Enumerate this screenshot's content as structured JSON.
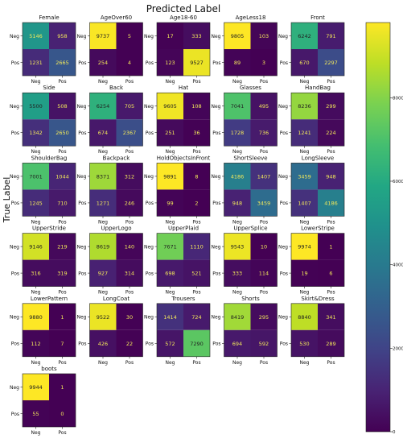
{
  "chart_data": {
    "type": "heatmap",
    "title": "Predicted Label",
    "ylabel": "True Label",
    "row_labels": [
      "Neg",
      "Pos"
    ],
    "col_labels": [
      "Neg",
      "Pos"
    ],
    "colormap": "viridis",
    "color_range": [
      0,
      9800
    ],
    "colorbar_ticks": [
      0,
      2000,
      4000,
      6000,
      8000
    ],
    "colorbar_tick_labels": [
      "0",
      "2000",
      "4000",
      "6000",
      "8000"
    ],
    "matrices": [
      {
        "name": "Female",
        "values": [
          [
            5146,
            958
          ],
          [
            1231,
            2665
          ]
        ]
      },
      {
        "name": "AgeOver60",
        "values": [
          [
            9737,
            5
          ],
          [
            254,
            4
          ]
        ]
      },
      {
        "name": "Age18-60",
        "values": [
          [
            17,
            333
          ],
          [
            123,
            9527
          ]
        ]
      },
      {
        "name": "AgeLess18",
        "values": [
          [
            9805,
            103
          ],
          [
            89,
            3
          ]
        ]
      },
      {
        "name": "Front",
        "values": [
          [
            6242,
            791
          ],
          [
            670,
            2297
          ]
        ]
      },
      {
        "name": "Side",
        "values": [
          [
            5500,
            508
          ],
          [
            1342,
            2650
          ]
        ]
      },
      {
        "name": "Back",
        "values": [
          [
            6254,
            705
          ],
          [
            674,
            2367
          ]
        ]
      },
      {
        "name": "Hat",
        "values": [
          [
            9605,
            108
          ],
          [
            251,
            36
          ]
        ]
      },
      {
        "name": "Glasses",
        "values": [
          [
            7041,
            495
          ],
          [
            1728,
            736
          ]
        ]
      },
      {
        "name": "HandBag",
        "values": [
          [
            8236,
            299
          ],
          [
            1241,
            224
          ]
        ]
      },
      {
        "name": "ShoulderBag",
        "values": [
          [
            7001,
            1044
          ],
          [
            1245,
            710
          ]
        ]
      },
      {
        "name": "Backpack",
        "values": [
          [
            8371,
            312
          ],
          [
            1271,
            246
          ]
        ]
      },
      {
        "name": "HoldObjectsInFront",
        "values": [
          [
            9891,
            8
          ],
          [
            99,
            2
          ]
        ]
      },
      {
        "name": "ShortSleeve",
        "values": [
          [
            4186,
            1407
          ],
          [
            948,
            3459
          ]
        ]
      },
      {
        "name": "LongSleeve",
        "values": [
          [
            3459,
            948
          ],
          [
            1407,
            4186
          ]
        ]
      },
      {
        "name": "UpperStride",
        "values": [
          [
            9146,
            219
          ],
          [
            316,
            319
          ]
        ]
      },
      {
        "name": "UpperLogo",
        "values": [
          [
            8619,
            140
          ],
          [
            927,
            314
          ]
        ]
      },
      {
        "name": "UpperPlaid",
        "values": [
          [
            7671,
            1110
          ],
          [
            698,
            521
          ]
        ]
      },
      {
        "name": "UpperSplice",
        "values": [
          [
            9543,
            10
          ],
          [
            333,
            114
          ]
        ]
      },
      {
        "name": "LowerStripe",
        "values": [
          [
            9974,
            1
          ],
          [
            19,
            6
          ]
        ]
      },
      {
        "name": "LowerPattern",
        "values": [
          [
            9880,
            1
          ],
          [
            112,
            7
          ]
        ]
      },
      {
        "name": "LongCoat",
        "values": [
          [
            9522,
            30
          ],
          [
            426,
            22
          ]
        ]
      },
      {
        "name": "Trousers",
        "values": [
          [
            1414,
            724
          ],
          [
            572,
            7290
          ]
        ]
      },
      {
        "name": "Shorts",
        "values": [
          [
            8419,
            295
          ],
          [
            694,
            592
          ]
        ]
      },
      {
        "name": "Skirt&Dress",
        "values": [
          [
            8840,
            341
          ],
          [
            530,
            289
          ]
        ]
      },
      {
        "name": "boots",
        "values": [
          [
            9944,
            1
          ],
          [
            55,
            0
          ]
        ]
      }
    ]
  }
}
